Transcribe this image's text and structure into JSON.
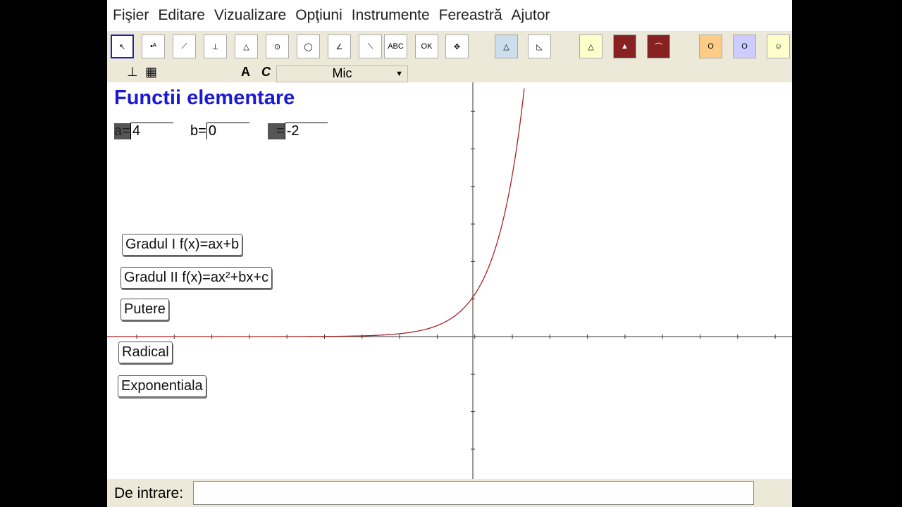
{
  "menu": [
    "Fişier",
    "Editare",
    "Vizualizare",
    "Opţiuni",
    "Instrumente",
    "Fereastră",
    "Ajutor"
  ],
  "toolbar": {
    "text_tool": "ABC",
    "button_tool": "OK"
  },
  "style_bar": {
    "bold": "A",
    "italic": "C",
    "font_size": "Mic"
  },
  "title": "Functii elementare",
  "sliders": [
    {
      "label": "a=",
      "value": "4"
    },
    {
      "label": "b=",
      "value": "0"
    },
    {
      "label": "=",
      "value": "-2"
    }
  ],
  "buttons": [
    "Gradul I f(x)=ax+b",
    "Gradul II f(x)=ax²+bx+c",
    "Putere",
    "Radical",
    "Exponentiala"
  ],
  "input_bar": {
    "label": "De intrare:"
  }
}
